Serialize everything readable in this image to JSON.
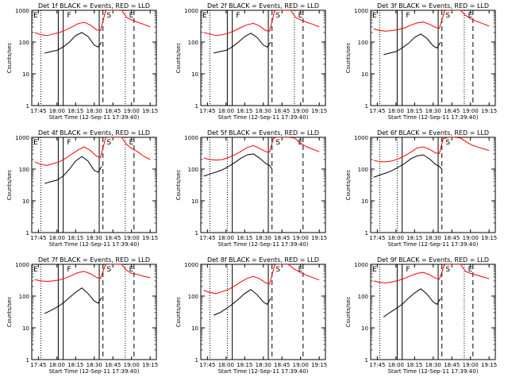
{
  "chart_data": [
    {
      "type": "line",
      "title": "Det 1f BLACK = Events, RED = LLD",
      "ylabel": "Counts/sec",
      "xlabel": "Start Time (12-Sep-11 17:39:40)",
      "yscale": "log",
      "ylim": [
        1,
        1000
      ],
      "yticks": [
        "1",
        "10",
        "100",
        "1000"
      ],
      "xticks": [
        "17:45",
        "18:00",
        "18:15",
        "18:30",
        "18:45",
        "19:00",
        "19:15"
      ],
      "flags": [
        "E",
        "F",
        "S",
        "E"
      ],
      "series": [
        {
          "name": "LLD",
          "color": "#ff0000",
          "x": [
            "17:42",
            "17:47",
            "17:52",
            "17:57",
            "18:02",
            "18:07",
            "18:12",
            "18:17",
            "18:22",
            "18:27",
            "18:32",
            "18:35",
            "18:39",
            "18:40",
            "18:52",
            "18:56",
            "19:00",
            "19:05",
            "19:10",
            "19:15"
          ],
          "y": [
            200,
            170,
            160,
            180,
            200,
            240,
            300,
            380,
            420,
            340,
            240,
            230,
            900,
            1000,
            1000,
            600,
            500,
            420,
            360,
            300
          ]
        },
        {
          "name": "Events",
          "color": "#000000",
          "x": [
            "17:50",
            "17:55",
            "18:00",
            "18:05",
            "18:10",
            "18:15",
            "18:20",
            "18:25",
            "18:30",
            "18:33",
            "18:36"
          ],
          "y": [
            45,
            50,
            55,
            70,
            100,
            160,
            200,
            150,
            80,
            70,
            100
          ]
        }
      ]
    },
    {
      "type": "line",
      "title": "Det 2f BLACK = Events, RED = LLD",
      "ylabel": "Counts/sec",
      "xlabel": "Start Time (12-Sep-11 17:39:40)",
      "yscale": "log",
      "ylim": [
        1,
        1000
      ],
      "yticks": [
        "1",
        "10",
        "100",
        "1000"
      ],
      "xticks": [
        "17:45",
        "18:00",
        "18:15",
        "18:30",
        "18:45",
        "19:00",
        "19:15"
      ],
      "flags": [
        "E",
        "F",
        "S",
        "E"
      ],
      "series": [
        {
          "name": "LLD",
          "color": "#ff0000",
          "x": [
            "17:42",
            "17:47",
            "17:52",
            "17:57",
            "18:02",
            "18:07",
            "18:12",
            "18:17",
            "18:22",
            "18:27",
            "18:32",
            "18:35",
            "18:39",
            "18:40",
            "18:52",
            "18:56",
            "19:00",
            "19:05",
            "19:10",
            "19:15"
          ],
          "y": [
            200,
            180,
            160,
            170,
            190,
            230,
            290,
            350,
            390,
            320,
            230,
            220,
            900,
            1000,
            1000,
            600,
            500,
            420,
            360,
            300
          ]
        },
        {
          "name": "Events",
          "color": "#000000",
          "x": [
            "17:50",
            "17:55",
            "18:00",
            "18:05",
            "18:10",
            "18:15",
            "18:20",
            "18:25",
            "18:30",
            "18:33",
            "18:36"
          ],
          "y": [
            45,
            50,
            55,
            70,
            100,
            150,
            190,
            140,
            80,
            70,
            100
          ]
        }
      ]
    },
    {
      "type": "line",
      "title": "Det 3f BLACK = Events, RED = LLD",
      "ylabel": "Counts/sec",
      "xlabel": "Start Time (12-Sep-11 17:39:40)",
      "yscale": "log",
      "ylim": [
        1,
        1000
      ],
      "yticks": [
        "1",
        "10",
        "100",
        "1000"
      ],
      "xticks": [
        "17:45",
        "18:00",
        "18:15",
        "18:30",
        "18:45",
        "19:00",
        "19:15"
      ],
      "flags": [
        "E",
        "F",
        "S",
        "E"
      ],
      "series": [
        {
          "name": "LLD",
          "color": "#ff0000",
          "x": [
            "17:42",
            "17:47",
            "17:52",
            "17:57",
            "18:02",
            "18:07",
            "18:12",
            "18:17",
            "18:22",
            "18:27",
            "18:32",
            "18:35",
            "18:39",
            "18:40",
            "18:52",
            "18:56",
            "19:00",
            "19:05",
            "19:10",
            "19:15"
          ],
          "y": [
            260,
            230,
            220,
            230,
            250,
            280,
            340,
            400,
            430,
            360,
            290,
            270,
            900,
            1000,
            1000,
            700,
            550,
            450,
            380,
            320
          ]
        },
        {
          "name": "Events",
          "color": "#000000",
          "x": [
            "17:50",
            "17:55",
            "18:00",
            "18:05",
            "18:10",
            "18:15",
            "18:20",
            "18:25",
            "18:30",
            "18:33",
            "18:36"
          ],
          "y": [
            40,
            45,
            50,
            65,
            90,
            140,
            180,
            130,
            75,
            65,
            100
          ]
        }
      ]
    },
    {
      "type": "line",
      "title": "Det 4f BLACK = Events, RED = LLD",
      "ylabel": "Counts/sec",
      "xlabel": "Start Time (12-Sep-11 17:39:40)",
      "yscale": "log",
      "ylim": [
        1,
        1000
      ],
      "yticks": [
        "1",
        "10",
        "100",
        "1000"
      ],
      "xticks": [
        "17:45",
        "18:00",
        "18:15",
        "18:30",
        "18:45",
        "19:00",
        "19:15"
      ],
      "flags": [
        "E",
        "F",
        "S",
        "E"
      ],
      "series": [
        {
          "name": "LLD",
          "color": "#ff0000",
          "x": [
            "17:42",
            "17:47",
            "17:52",
            "17:57",
            "18:02",
            "18:07",
            "18:12",
            "18:17",
            "18:22",
            "18:27",
            "18:32",
            "18:35",
            "18:39",
            "18:40",
            "18:52",
            "18:56",
            "19:00",
            "19:05",
            "19:10",
            "19:15"
          ],
          "y": [
            170,
            140,
            130,
            150,
            170,
            220,
            300,
            400,
            500,
            380,
            250,
            230,
            900,
            1000,
            1000,
            600,
            450,
            350,
            250,
            200
          ]
        },
        {
          "name": "Events",
          "color": "#000000",
          "x": [
            "17:50",
            "17:55",
            "18:00",
            "18:05",
            "18:10",
            "18:15",
            "18:20",
            "18:25",
            "18:30",
            "18:33",
            "18:36"
          ],
          "y": [
            35,
            40,
            45,
            60,
            100,
            180,
            250,
            180,
            90,
            80,
            120
          ]
        }
      ]
    },
    {
      "type": "line",
      "title": "Det 5f BLACK = Events, RED = LLD",
      "ylabel": "Counts/sec",
      "xlabel": "Start Time (12-Sep-11 17:39:40)",
      "yscale": "log",
      "ylim": [
        1,
        1000
      ],
      "yticks": [
        "1",
        "10",
        "100",
        "1000"
      ],
      "xticks": [
        "17:45",
        "18:00",
        "18:15",
        "18:30",
        "18:45",
        "19:00",
        "19:15"
      ],
      "flags": [
        "S",
        "E"
      ],
      "series": [
        {
          "name": "LLD",
          "color": "#ff0000",
          "x": [
            "17:42",
            "17:47",
            "17:52",
            "17:57",
            "18:02",
            "18:07",
            "18:12",
            "18:17",
            "18:22",
            "18:27",
            "18:32",
            "18:35",
            "18:38",
            "18:40",
            "18:45",
            "18:50",
            "18:55",
            "19:00",
            "19:05",
            "19:10",
            "19:15"
          ],
          "y": [
            220,
            200,
            190,
            200,
            230,
            280,
            360,
            480,
            550,
            450,
            350,
            340,
            900,
            1000,
            1000,
            1000,
            950,
            650,
            500,
            420,
            350
          ]
        },
        {
          "name": "Events",
          "color": "#000000",
          "x": [
            "17:42",
            "17:47",
            "17:52",
            "17:57",
            "18:02",
            "18:07",
            "18:12",
            "18:17",
            "18:22",
            "18:27",
            "18:32",
            "18:35",
            "18:37"
          ],
          "y": [
            60,
            70,
            80,
            95,
            120,
            160,
            220,
            280,
            300,
            220,
            150,
            130,
            100
          ]
        }
      ]
    },
    {
      "type": "line",
      "title": "Det 6f BLACK = Events, RED = LLD",
      "ylabel": "Counts/sec",
      "xlabel": "Start Time (12-Sep-11 17:39:40)",
      "yscale": "log",
      "ylim": [
        1,
        1000
      ],
      "yticks": [
        "1",
        "10",
        "100",
        "1000"
      ],
      "xticks": [
        "17:45",
        "18:00",
        "18:15",
        "18:30",
        "18:45",
        "19:00",
        "19:15"
      ],
      "flags": [
        "S"
      ],
      "series": [
        {
          "name": "LLD",
          "color": "#ff0000",
          "x": [
            "17:42",
            "17:47",
            "17:52",
            "17:57",
            "18:02",
            "18:07",
            "18:12",
            "18:17",
            "18:22",
            "18:27",
            "18:32",
            "18:35",
            "18:38",
            "18:42",
            "18:47",
            "18:52",
            "18:57",
            "19:02",
            "19:07",
            "19:12",
            "19:15"
          ],
          "y": [
            190,
            170,
            170,
            180,
            210,
            260,
            340,
            460,
            500,
            420,
            320,
            310,
            900,
            1000,
            1000,
            950,
            700,
            550,
            480,
            420,
            380
          ]
        },
        {
          "name": "Events",
          "color": "#000000",
          "x": [
            "17:42",
            "17:47",
            "17:52",
            "17:57",
            "18:02",
            "18:07",
            "18:12",
            "18:17",
            "18:22",
            "18:27",
            "18:32",
            "18:35",
            "18:37"
          ],
          "y": [
            55,
            65,
            75,
            90,
            115,
            150,
            210,
            260,
            280,
            210,
            140,
            120,
            100
          ]
        }
      ]
    },
    {
      "type": "line",
      "title": "Det 7f BLACK = Events, RED = LLD",
      "ylabel": "Counts/sec",
      "xlabel": "Start Time (12-Sep-11 17:39:40)",
      "yscale": "log",
      "ylim": [
        1,
        1000
      ],
      "yticks": [
        "1",
        "10",
        "100",
        "1000"
      ],
      "xticks": [
        "17:45",
        "18:00",
        "18:15",
        "18:30",
        "18:45",
        "19:00",
        "19:15"
      ],
      "flags": [
        "E",
        "F",
        "S",
        "E"
      ],
      "series": [
        {
          "name": "LLD",
          "color": "#ff0000",
          "x": [
            "17:42",
            "17:47",
            "17:52",
            "17:57",
            "18:02",
            "18:07",
            "18:12",
            "18:17",
            "18:22",
            "18:27",
            "18:32",
            "18:35",
            "18:39",
            "18:40",
            "18:52",
            "18:56",
            "19:00",
            "19:05",
            "19:10",
            "19:15"
          ],
          "y": [
            330,
            300,
            290,
            300,
            320,
            370,
            450,
            550,
            600,
            500,
            380,
            360,
            950,
            1000,
            1000,
            650,
            520,
            480,
            420,
            380
          ]
        },
        {
          "name": "Events",
          "color": "#000000",
          "x": [
            "17:50",
            "17:55",
            "18:00",
            "18:05",
            "18:10",
            "18:15",
            "18:20",
            "18:25",
            "18:30",
            "18:33",
            "18:36"
          ],
          "y": [
            28,
            35,
            45,
            60,
            90,
            130,
            180,
            120,
            70,
            60,
            90
          ]
        }
      ]
    },
    {
      "type": "line",
      "title": "Det 8f BLACK = Events, RED = LLD",
      "ylabel": "Counts/sec",
      "xlabel": "Start Time (12-Sep-11 17:39:40)",
      "yscale": "log",
      "ylim": [
        1,
        1000
      ],
      "yticks": [
        "1",
        "10",
        "100",
        "1000"
      ],
      "xticks": [
        "17:45",
        "18:00",
        "18:15",
        "18:30",
        "18:45",
        "19:00",
        "19:15"
      ],
      "flags": [
        "S",
        "E"
      ],
      "series": [
        {
          "name": "LLD",
          "color": "#ff0000",
          "x": [
            "17:42",
            "17:47",
            "17:52",
            "17:57",
            "18:02",
            "18:07",
            "18:12",
            "18:17",
            "18:22",
            "18:27",
            "18:32",
            "18:35",
            "18:39",
            "18:40",
            "18:50",
            "18:55",
            "19:00",
            "19:05",
            "19:10",
            "19:15"
          ],
          "y": [
            150,
            130,
            120,
            140,
            160,
            210,
            280,
            360,
            420,
            350,
            260,
            240,
            900,
            1000,
            1000,
            700,
            550,
            450,
            380,
            320
          ]
        },
        {
          "name": "Events",
          "color": "#000000",
          "x": [
            "17:50",
            "17:55",
            "18:00",
            "18:05",
            "18:10",
            "18:15",
            "18:20",
            "18:25",
            "18:30",
            "18:33",
            "18:36"
          ],
          "y": [
            25,
            30,
            40,
            55,
            80,
            120,
            160,
            110,
            65,
            55,
            85
          ]
        }
      ]
    },
    {
      "type": "line",
      "title": "Det 9f BLACK = Events, RED = LLD",
      "ylabel": "Counts/sec",
      "xlabel": "Start Time (12-Sep-11 17:39:40)",
      "yscale": "log",
      "ylim": [
        1,
        1000
      ],
      "yticks": [
        "1",
        "10",
        "100",
        "1000"
      ],
      "xticks": [
        "17:45",
        "18:00",
        "18:15",
        "18:30",
        "18:45",
        "19:00",
        "19:15"
      ],
      "flags": [
        "E",
        "F",
        "S",
        "E"
      ],
      "series": [
        {
          "name": "LLD",
          "color": "#ff0000",
          "x": [
            "17:42",
            "17:47",
            "17:52",
            "17:57",
            "18:02",
            "18:07",
            "18:12",
            "18:17",
            "18:22",
            "18:27",
            "18:32",
            "18:35",
            "18:39",
            "18:40",
            "18:52",
            "18:56",
            "19:00",
            "19:05",
            "19:10",
            "19:15"
          ],
          "y": [
            300,
            270,
            260,
            280,
            310,
            360,
            440,
            520,
            560,
            470,
            360,
            340,
            950,
            1000,
            1000,
            600,
            520,
            460,
            400,
            350
          ]
        },
        {
          "name": "Events",
          "color": "#000000",
          "x": [
            "17:50",
            "17:55",
            "18:00",
            "18:05",
            "18:10",
            "18:15",
            "18:20",
            "18:25",
            "18:30",
            "18:33",
            "18:36"
          ],
          "y": [
            22,
            30,
            40,
            55,
            85,
            125,
            170,
            115,
            65,
            55,
            85
          ]
        }
      ]
    }
  ]
}
